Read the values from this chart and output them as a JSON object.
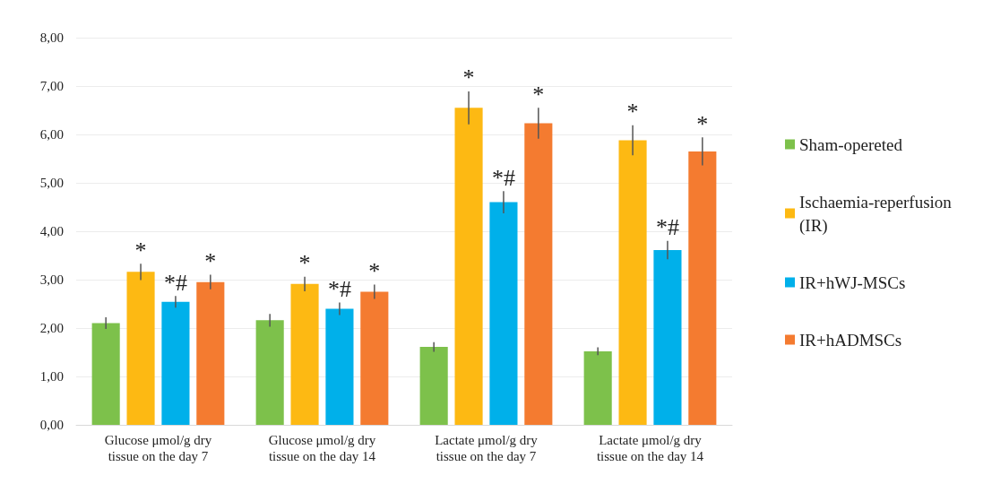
{
  "chart_data": {
    "type": "bar",
    "categories": [
      "Glucose μmol/g dry\ntissue on the day 7",
      "Glucose μmol/g dry\ntissue on the day 14",
      "Lactate μmol/g dry\ntissue on the day 7",
      "Lactate μmol/g dry\ntissue on the day 14"
    ],
    "series": [
      {
        "name": "Sham-opereted",
        "color": "#7dc14b",
        "values": [
          2.1,
          2.16,
          1.61,
          1.52
        ],
        "errors": [
          0.12,
          0.13,
          0.1,
          0.08
        ],
        "value_labels": [
          null,
          null,
          null,
          null
        ]
      },
      {
        "name": "Ischaemia-reperfusion (IR)",
        "color": "#fdb913",
        "values": [
          3.16,
          2.91,
          6.55,
          5.88
        ],
        "errors": [
          0.17,
          0.15,
          0.34,
          0.31
        ],
        "value_labels": [
          "*",
          "*",
          "*",
          "*"
        ]
      },
      {
        "name": "IR+hWJ-MSCs",
        "color": "#00b0ea",
        "values": [
          2.54,
          2.4,
          4.6,
          3.61
        ],
        "errors": [
          0.12,
          0.13,
          0.23,
          0.19
        ],
        "value_labels": [
          "*#",
          "*#",
          "*#",
          "*#"
        ]
      },
      {
        "name": "IR+hADMSCs",
        "color": "#f47b30",
        "values": [
          2.95,
          2.75,
          6.23,
          5.65
        ],
        "errors": [
          0.15,
          0.15,
          0.32,
          0.29
        ],
        "value_labels": [
          "*",
          "*",
          "*",
          "*"
        ]
      }
    ],
    "ylim": [
      0,
      8
    ],
    "yticks": [
      {
        "value": 0,
        "label": "0,00"
      },
      {
        "value": 1,
        "label": "1,00"
      },
      {
        "value": 2,
        "label": "2,00"
      },
      {
        "value": 3,
        "label": "3,00"
      },
      {
        "value": 4,
        "label": "4,00"
      },
      {
        "value": 5,
        "label": "5,00"
      },
      {
        "value": 6,
        "label": "6,00"
      },
      {
        "value": 7,
        "label": "7,00"
      },
      {
        "value": 8,
        "label": "8,00"
      }
    ],
    "grid": "y",
    "legend": "right"
  }
}
